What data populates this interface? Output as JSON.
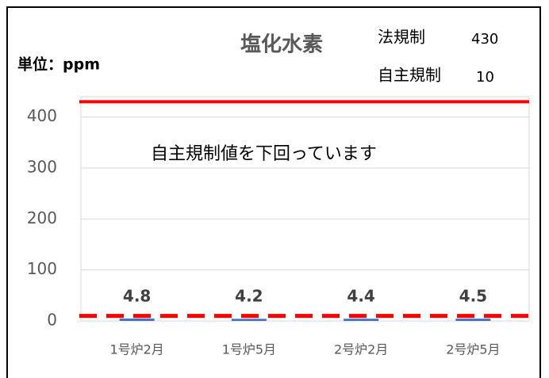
{
  "chart_data": {
    "type": "bar",
    "title": "塩化水素",
    "unit_label": "単位：ppm",
    "categories": [
      "1号炉2月",
      "1号炉5月",
      "2号炉2月",
      "2号炉5月"
    ],
    "values": [
      4.8,
      4.2,
      4.4,
      4.5
    ],
    "color": "#4472c4",
    "ylim": [
      0,
      440
    ],
    "yticks": [
      0,
      100,
      200,
      300,
      400
    ],
    "grid": true,
    "limits": [
      {
        "label": "法規制",
        "value": 430,
        "color": "#ff0000",
        "style": "solid"
      },
      {
        "label": "自主規制",
        "value": 10,
        "color": "#ff0000",
        "style": "dashed"
      }
    ],
    "annotation": "自主規制値を下回っています"
  }
}
